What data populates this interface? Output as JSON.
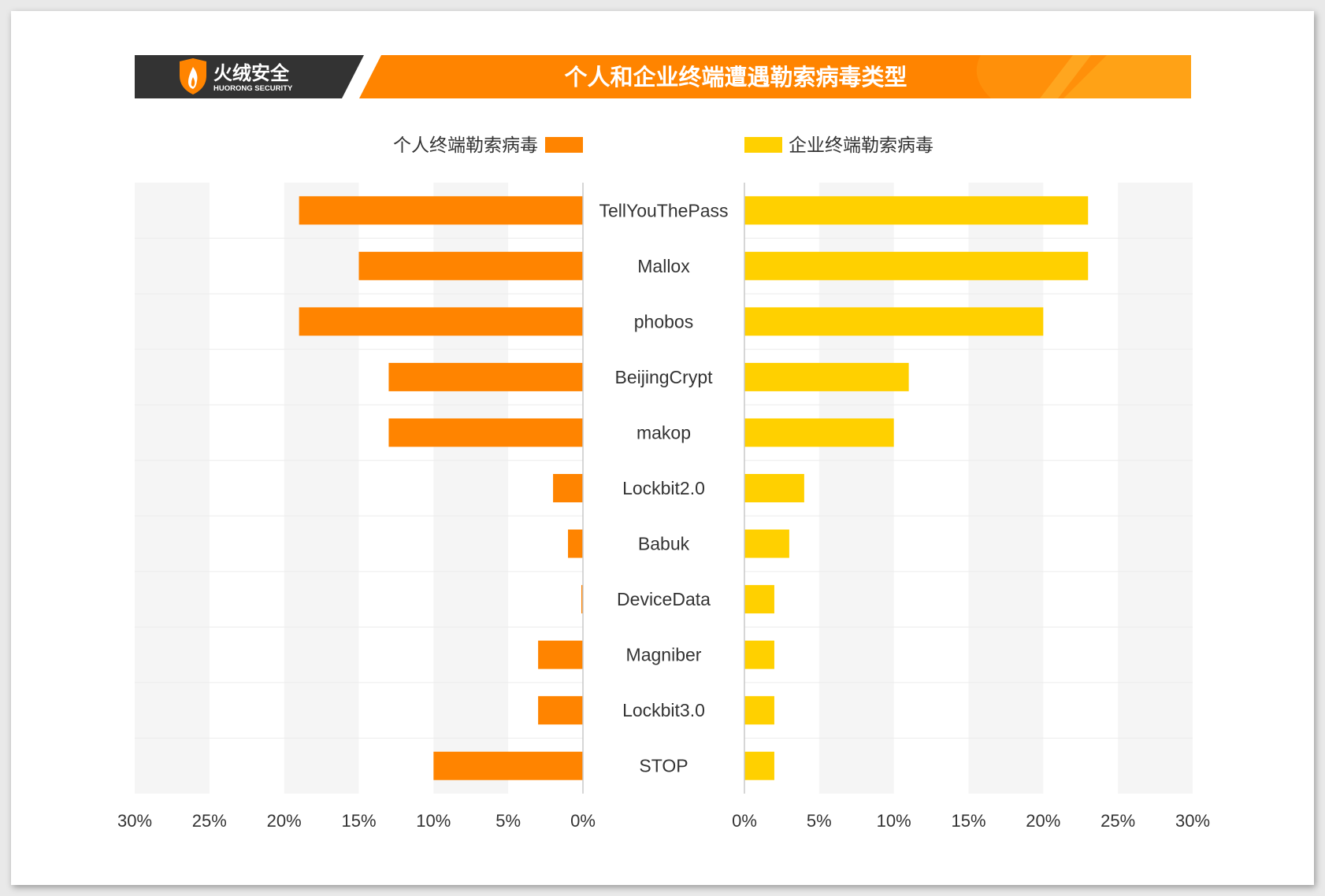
{
  "header": {
    "brand_cn": "火绒安全",
    "brand_en": "HUORONG SECURITY",
    "title": "个人和企业终端遭遇勒索病毒类型"
  },
  "colors": {
    "personal": "#ff8400",
    "enterprise": "#ffd000",
    "header_dark": "#333333",
    "band": "#f5f5f5"
  },
  "icons": {
    "logo": "shield-flame-icon"
  },
  "chart_data": {
    "type": "bar",
    "orientation": "horizontal-butterfly",
    "categories": [
      "TellYouThePass",
      "Mallox",
      "phobos",
      "BeijingCrypt",
      "makop",
      "Lockbit2.0",
      "Babuk",
      "DeviceData",
      "Magniber",
      "Lockbit3.0",
      "STOP"
    ],
    "series": [
      {
        "name": "个人终端勒索病毒",
        "side": "left",
        "values": [
          19,
          15,
          19,
          13,
          13,
          2,
          1,
          0.1,
          3,
          3,
          10
        ]
      },
      {
        "name": "企业终端勒索病毒",
        "side": "right",
        "values": [
          23,
          23,
          20,
          11,
          10,
          4,
          3,
          2,
          2,
          2,
          2
        ]
      }
    ],
    "left_ticks": [
      "30%",
      "25%",
      "20%",
      "15%",
      "10%",
      "5%",
      "0%"
    ],
    "right_ticks": [
      "0%",
      "5%",
      "10%",
      "15%",
      "20%",
      "25%",
      "30%"
    ],
    "xlim": [
      0,
      30
    ],
    "unit": "%",
    "title": "个人和企业终端遭遇勒索病毒类型",
    "legend_position": "top"
  }
}
